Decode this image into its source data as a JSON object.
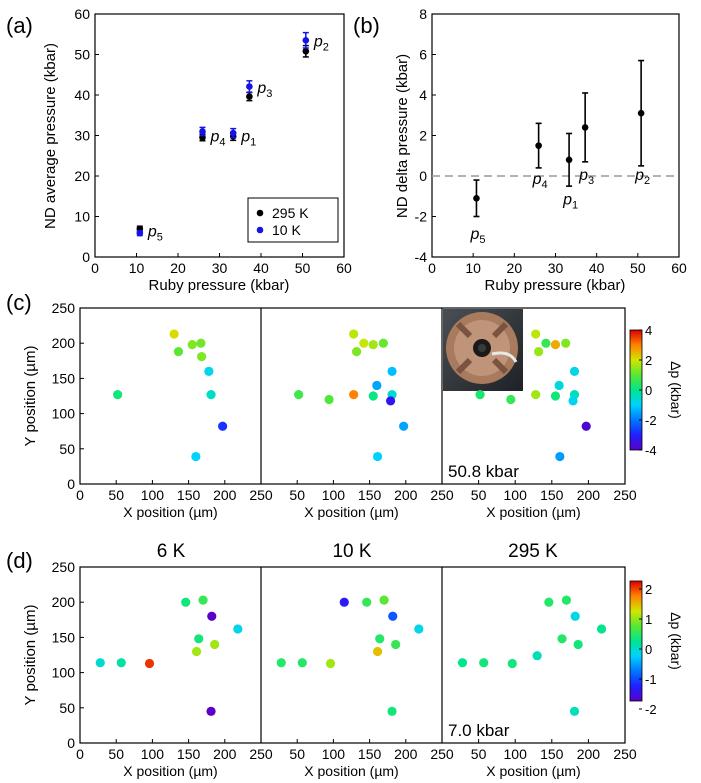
{
  "chart_data": [
    {
      "panel": "(a)",
      "type": "scatter",
      "xlabel": "Ruby pressure (kbar)",
      "ylabel": "ND average pressure (kbar)",
      "xlim": [
        0,
        60
      ],
      "ylim": [
        0,
        60
      ],
      "xticks": [
        0,
        10,
        20,
        30,
        40,
        50,
        60
      ],
      "yticks": [
        0,
        10,
        20,
        30,
        40,
        50,
        60
      ],
      "grid": false,
      "legend_position": "bottom-right",
      "point_labels": [
        {
          "main": "p",
          "sub": "2",
          "x": 50.8,
          "y": 53
        },
        {
          "main": "p",
          "sub": "3",
          "x": 37.2,
          "y": 41.5
        },
        {
          "main": "p",
          "sub": "4",
          "x": 25.9,
          "y": 29.5
        },
        {
          "main": "p",
          "sub": "1",
          "x": 33.3,
          "y": 29.5
        },
        {
          "main": "p",
          "sub": "5",
          "x": 10.8,
          "y": 6
        }
      ],
      "series": [
        {
          "name": "295 K",
          "color": "#000000",
          "x": [
            10.8,
            25.9,
            33.3,
            37.2,
            50.8
          ],
          "y": [
            7.0,
            29.5,
            29.8,
            39.6,
            50.8
          ],
          "err": [
            0.6,
            0.8,
            1.0,
            1.0,
            1.4
          ]
        },
        {
          "name": "10 K",
          "color": "#1414e6",
          "x": [
            10.8,
            25.9,
            33.3,
            37.2,
            50.8
          ],
          "y": [
            5.9,
            31.0,
            30.6,
            42.1,
            53.5
          ],
          "err": [
            0.6,
            1.0,
            1.1,
            1.4,
            1.9
          ]
        }
      ]
    },
    {
      "panel": "(b)",
      "type": "scatter",
      "xlabel": "Ruby pressure (kbar)",
      "ylabel": "ND delta pressure (kbar)",
      "xlim": [
        0,
        60
      ],
      "ylim": [
        -4,
        8
      ],
      "xticks": [
        0,
        10,
        20,
        30,
        40,
        50,
        60
      ],
      "yticks": [
        -4,
        -2,
        0,
        2,
        4,
        6,
        8
      ],
      "grid": false,
      "reference_line": {
        "y": 0,
        "style": "dashed"
      },
      "point_labels": [
        {
          "main": "p",
          "sub": "5",
          "x": 10.8,
          "y": -3.1
        },
        {
          "main": "p",
          "sub": "4",
          "x": 25.9,
          "y": -0.4
        },
        {
          "main": "p",
          "sub": "1",
          "x": 33.3,
          "y": -1.4
        },
        {
          "main": "p",
          "sub": "3",
          "x": 37.2,
          "y": -0.2
        },
        {
          "main": "p",
          "sub": "2",
          "x": 50.8,
          "y": -0.2
        }
      ],
      "series": [
        {
          "color": "#000000",
          "x": [
            10.8,
            25.9,
            33.3,
            37.2,
            50.8
          ],
          "y": [
            -1.1,
            1.5,
            0.8,
            2.4,
            3.1
          ],
          "err_low": [
            0.9,
            1.1,
            1.3,
            1.7,
            2.6
          ],
          "err_high": [
            0.9,
            1.1,
            1.3,
            1.7,
            2.6
          ]
        }
      ]
    },
    {
      "panel": "(c)",
      "type": "scatter",
      "xlabel": "X position (µm)",
      "ylabel": "Y position (µm)",
      "xlim": [
        0,
        250
      ],
      "ylim": [
        0,
        250
      ],
      "xticks": [
        0,
        50,
        100,
        150,
        200,
        250
      ],
      "yticks": [
        0,
        50,
        100,
        150,
        200,
        250
      ],
      "colorbar": {
        "label": "Δp (kbar)",
        "min": -4,
        "max": 4,
        "ticks": [
          -4,
          -2,
          0,
          2,
          4
        ]
      },
      "annotation": "50.8 kbar",
      "subplots": [
        {
          "points": [
            {
              "x": 52,
              "y": 127,
              "dp": 0.2
            },
            {
              "x": 130,
              "y": 213,
              "dp": 2.1
            },
            {
              "x": 136,
              "y": 188,
              "dp": 1.0
            },
            {
              "x": 155,
              "y": 198,
              "dp": 1.3
            },
            {
              "x": 167,
              "y": 200,
              "dp": 1.2
            },
            {
              "x": 168,
              "y": 181,
              "dp": 1.3
            },
            {
              "x": 178,
              "y": 160,
              "dp": -0.8
            },
            {
              "x": 181,
              "y": 127,
              "dp": -0.5
            },
            {
              "x": 197,
              "y": 82,
              "dp": -2.8
            },
            {
              "x": 160,
              "y": 39,
              "dp": -1.0
            }
          ]
        },
        {
          "points": [
            {
              "x": 52,
              "y": 127,
              "dp": 0.7
            },
            {
              "x": 94,
              "y": 120,
              "dp": 0.9
            },
            {
              "x": 128,
              "y": 213,
              "dp": 1.8
            },
            {
              "x": 132,
              "y": 188,
              "dp": 1.3
            },
            {
              "x": 142,
              "y": 200,
              "dp": 1.9
            },
            {
              "x": 155,
              "y": 198,
              "dp": 1.6
            },
            {
              "x": 169,
              "y": 200,
              "dp": 1.1
            },
            {
              "x": 128,
              "y": 127,
              "dp": 3.0
            },
            {
              "x": 155,
              "y": 125,
              "dp": 0.1
            },
            {
              "x": 160,
              "y": 140,
              "dp": -1.5
            },
            {
              "x": 181,
              "y": 160,
              "dp": -1.2
            },
            {
              "x": 181,
              "y": 127,
              "dp": -0.6
            },
            {
              "x": 179,
              "y": 118,
              "dp": -3.3
            },
            {
              "x": 197,
              "y": 82,
              "dp": -1.5
            },
            {
              "x": 161,
              "y": 39,
              "dp": -1.0
            }
          ]
        },
        {
          "points": [
            {
              "x": 52,
              "y": 127,
              "dp": 0.3
            },
            {
              "x": 94,
              "y": 120,
              "dp": 0.6
            },
            {
              "x": 128,
              "y": 213,
              "dp": 1.8
            },
            {
              "x": 132,
              "y": 188,
              "dp": 1.5
            },
            {
              "x": 142,
              "y": 200,
              "dp": 0.6
            },
            {
              "x": 155,
              "y": 198,
              "dp": 2.6
            },
            {
              "x": 169,
              "y": 200,
              "dp": 1.3
            },
            {
              "x": 128,
              "y": 127,
              "dp": 1.6
            },
            {
              "x": 155,
              "y": 125,
              "dp": 0.2
            },
            {
              "x": 160,
              "y": 140,
              "dp": -0.7
            },
            {
              "x": 181,
              "y": 160,
              "dp": -0.8
            },
            {
              "x": 181,
              "y": 127,
              "dp": -0.4
            },
            {
              "x": 179,
              "y": 118,
              "dp": -0.9
            },
            {
              "x": 197,
              "y": 82,
              "dp": -3.8
            },
            {
              "x": 161,
              "y": 39,
              "dp": -1.6
            }
          ]
        }
      ]
    },
    {
      "panel": "(d)",
      "type": "scatter",
      "xlabel": "X position (µm)",
      "ylabel": "Y position (µm)",
      "xlim": [
        0,
        250
      ],
      "ylim": [
        0,
        250
      ],
      "xticks": [
        0,
        50,
        100,
        150,
        200,
        250
      ],
      "yticks": [
        0,
        50,
        100,
        150,
        200,
        250
      ],
      "colorbar": {
        "label": "Δp (kbar)",
        "min": -2,
        "max": 2,
        "ticks": [
          -2,
          -1,
          0,
          1,
          2
        ]
      },
      "annotation": "7.0 kbar",
      "subplots": [
        {
          "title": "6 K",
          "points": [
            {
              "x": 28,
              "y": 114,
              "dp": -0.3
            },
            {
              "x": 57,
              "y": 114,
              "dp": -0.1
            },
            {
              "x": 96,
              "y": 113,
              "dp": 1.8
            },
            {
              "x": 146,
              "y": 200,
              "dp": 0.1
            },
            {
              "x": 170,
              "y": 203,
              "dp": 0.3
            },
            {
              "x": 164,
              "y": 148,
              "dp": 0.1
            },
            {
              "x": 182,
              "y": 180,
              "dp": -2.0
            },
            {
              "x": 218,
              "y": 162,
              "dp": -0.4
            },
            {
              "x": 161,
              "y": 130,
              "dp": 0.8
            },
            {
              "x": 186,
              "y": 140,
              "dp": 0.8
            },
            {
              "x": 181,
              "y": 45,
              "dp": -2.0
            }
          ]
        },
        {
          "title": "10 K",
          "points": [
            {
              "x": 28,
              "y": 114,
              "dp": 0.2
            },
            {
              "x": 57,
              "y": 114,
              "dp": 0.2
            },
            {
              "x": 96,
              "y": 113,
              "dp": 0.8
            },
            {
              "x": 115,
              "y": 200,
              "dp": -1.6
            },
            {
              "x": 146,
              "y": 200,
              "dp": 0.3
            },
            {
              "x": 170,
              "y": 203,
              "dp": 0.5
            },
            {
              "x": 164,
              "y": 148,
              "dp": 0.2
            },
            {
              "x": 182,
              "y": 180,
              "dp": -1.2
            },
            {
              "x": 218,
              "y": 162,
              "dp": -0.4
            },
            {
              "x": 161,
              "y": 130,
              "dp": 1.2
            },
            {
              "x": 186,
              "y": 140,
              "dp": 0.3
            },
            {
              "x": 181,
              "y": 45,
              "dp": 0.1
            }
          ]
        },
        {
          "title": "295 K",
          "points": [
            {
              "x": 28,
              "y": 114,
              "dp": 0.0
            },
            {
              "x": 57,
              "y": 114,
              "dp": 0.1
            },
            {
              "x": 96,
              "y": 113,
              "dp": 0.1
            },
            {
              "x": 130,
              "y": 124,
              "dp": -0.2
            },
            {
              "x": 146,
              "y": 200,
              "dp": 0.2
            },
            {
              "x": 170,
              "y": 203,
              "dp": 0.2
            },
            {
              "x": 164,
              "y": 148,
              "dp": 0.2
            },
            {
              "x": 182,
              "y": 180,
              "dp": -0.4
            },
            {
              "x": 218,
              "y": 162,
              "dp": 0.0
            },
            {
              "x": 186,
              "y": 140,
              "dp": 0.1
            },
            {
              "x": 181,
              "y": 45,
              "dp": -0.2
            }
          ]
        }
      ]
    }
  ]
}
